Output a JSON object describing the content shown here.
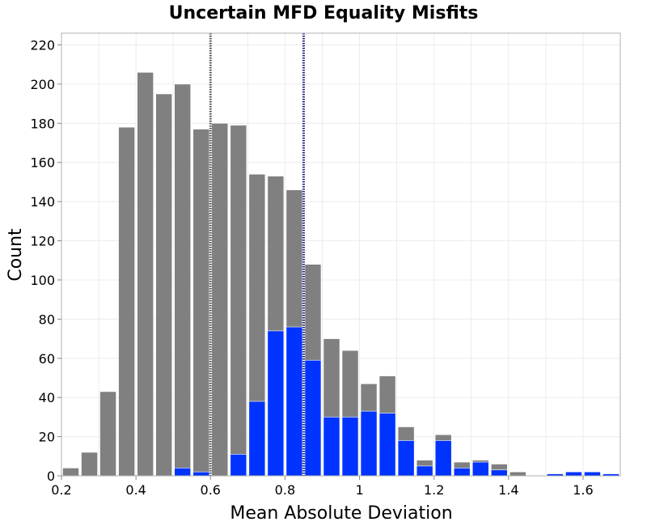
{
  "chart_data": {
    "type": "bar",
    "title": "Uncertain MFD Equality Misfits",
    "xlabel": "Mean Absolute Deviation",
    "ylabel": "Count",
    "xlim": [
      0.2,
      1.7
    ],
    "ylim": [
      0,
      226
    ],
    "bin_width": 0.05,
    "x_ticks": [
      0.2,
      0.4,
      0.6,
      0.8,
      1.0,
      1.2,
      1.4,
      1.6
    ],
    "x_tick_labels": [
      "0.2",
      "0.4",
      "0.6",
      "0.8",
      "1",
      "1.2",
      "1.4",
      "1.6"
    ],
    "y_ticks": [
      0,
      20,
      40,
      60,
      80,
      100,
      120,
      140,
      160,
      180,
      200,
      220
    ],
    "y_tick_labels": [
      "0",
      "20",
      "40",
      "60",
      "80",
      "100",
      "120",
      "140",
      "160",
      "180",
      "200",
      "220"
    ],
    "grid": true,
    "bin_starts": [
      0.2,
      0.25,
      0.3,
      0.35,
      0.4,
      0.45,
      0.5,
      0.55,
      0.6,
      0.65,
      0.7,
      0.75,
      0.8,
      0.85,
      0.9,
      0.95,
      1.0,
      1.05,
      1.1,
      1.15,
      1.2,
      1.25,
      1.3,
      1.35,
      1.4,
      1.45,
      1.5,
      1.55,
      1.6,
      1.65
    ],
    "series": [
      {
        "color": "#808080",
        "values": [
          4,
          12,
          43,
          178,
          206,
          195,
          200,
          177,
          180,
          179,
          154,
          153,
          146,
          108,
          70,
          64,
          47,
          51,
          25,
          8,
          21,
          7,
          8,
          6,
          2,
          0,
          0,
          0,
          0,
          0
        ]
      },
      {
        "color": "#0033ff",
        "values": [
          0,
          0,
          0,
          0,
          0,
          0,
          4,
          2,
          0,
          11,
          38,
          74,
          76,
          59,
          30,
          30,
          33,
          32,
          18,
          5,
          18,
          4,
          7,
          3,
          0,
          0,
          1,
          2,
          2,
          1
        ]
      }
    ],
    "vertical_lines": [
      {
        "x": 0.6,
        "color": "#555555"
      },
      {
        "x": 0.85,
        "color": "#1a237e"
      }
    ]
  }
}
